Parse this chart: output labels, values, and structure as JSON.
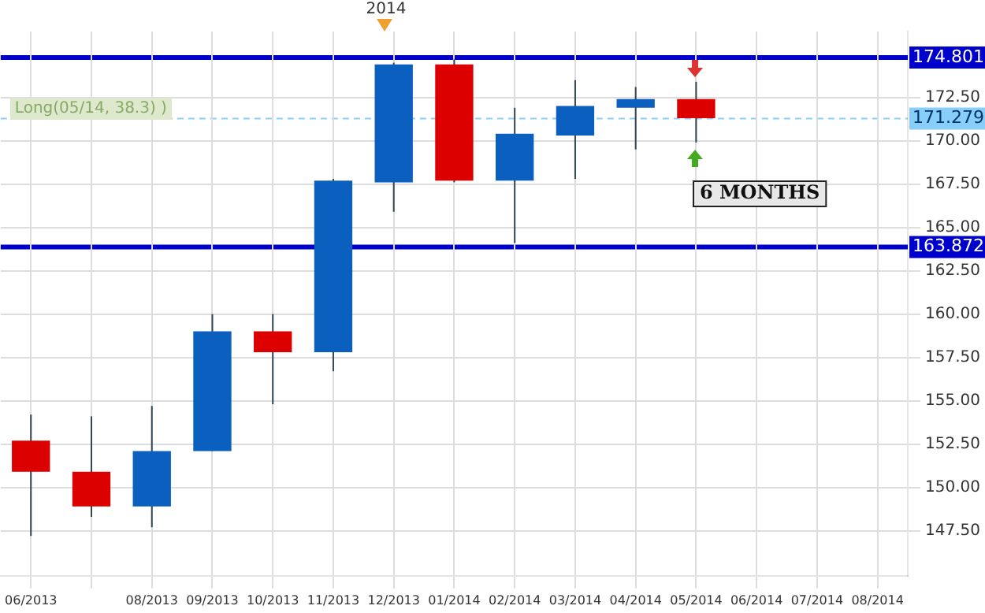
{
  "chart_data": {
    "type": "candlestick",
    "categories": [
      "06/2013",
      null,
      "08/2013",
      "09/2013",
      "10/2013",
      "11/2013",
      "12/2013",
      "01/2014",
      "02/2014",
      "03/2014",
      "04/2014",
      "05/2014",
      "06/2014",
      "07/2014",
      "08/2014"
    ],
    "ohlc": [
      [
        152.7,
        154.2,
        147.2,
        150.9
      ],
      [
        150.9,
        154.1,
        148.3,
        148.9
      ],
      [
        148.9,
        154.7,
        147.7,
        152.1
      ],
      [
        152.1,
        160.0,
        152.1,
        159.0
      ],
      [
        159.0,
        160.0,
        154.8,
        157.8
      ],
      [
        157.8,
        167.8,
        156.7,
        167.7
      ],
      [
        167.6,
        174.5,
        165.9,
        174.4
      ],
      [
        174.4,
        174.7,
        167.6,
        167.7
      ],
      [
        167.7,
        171.9,
        164.1,
        170.4
      ],
      [
        170.3,
        173.5,
        167.8,
        172.0
      ],
      [
        171.9,
        173.1,
        169.5,
        172.4
      ],
      [
        172.4,
        173.4,
        169.9,
        171.3
      ],
      null,
      null,
      null
    ],
    "colors": [
      "#dd0000",
      "#dd0000",
      "#0a5fbf",
      "#0a5fbf",
      "#dd0000",
      "#0a5fbf",
      "#0a5fbf",
      "#dd0000",
      "#0a5fbf",
      "#0a5fbf",
      "#0a5fbf",
      "#dd0000",
      null,
      null,
      null
    ],
    "ylim": [
      144.9,
      176.3
    ],
    "yticks": [
      {
        "value": 147.5,
        "label": "147.50"
      },
      {
        "value": 150,
        "label": "150.00"
      },
      {
        "value": 152.5,
        "label": "152.50"
      },
      {
        "value": 155,
        "label": "155.00"
      },
      {
        "value": 157.5,
        "label": "157.50"
      },
      {
        "value": 160,
        "label": "160.00"
      },
      {
        "value": 162.5,
        "label": "162.50"
      },
      {
        "value": 165,
        "label": "165.00"
      },
      {
        "value": 167.5,
        "label": "167.50"
      },
      {
        "value": 170,
        "label": "170.00"
      },
      {
        "value": 172.5,
        "label": "172.50"
      }
    ],
    "ref_lines": [
      {
        "axis": "y",
        "value": 174.801,
        "label": "174.801",
        "color": "#0000cc"
      },
      {
        "axis": "y",
        "value": 163.872,
        "label": "163.872",
        "color": "#0000cc"
      },
      {
        "axis": "y",
        "value": 171.279,
        "label": "171.279",
        "color": "#87cefa",
        "line_style": "dashed"
      }
    ],
    "annotations": [
      "Long(05/14, 38.3) )",
      "2014",
      "6 MONTHS"
    ],
    "grid": true,
    "legend": false
  }
}
